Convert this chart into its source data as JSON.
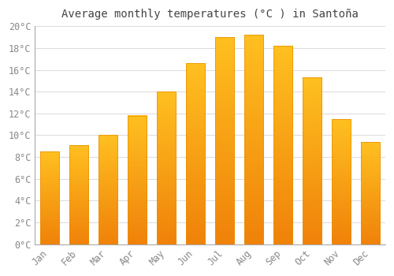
{
  "title": "Average monthly temperatures (°C ) in Santoña",
  "months": [
    "Jan",
    "Feb",
    "Mar",
    "Apr",
    "May",
    "Jun",
    "Jul",
    "Aug",
    "Sep",
    "Oct",
    "Nov",
    "Dec"
  ],
  "values": [
    8.5,
    9.1,
    10.0,
    11.8,
    14.0,
    16.6,
    19.0,
    19.2,
    18.2,
    15.3,
    11.5,
    9.4
  ],
  "bar_color_top": "#FFC020",
  "bar_color_bottom": "#F0820A",
  "ylim": [
    0,
    20
  ],
  "yticks": [
    0,
    2,
    4,
    6,
    8,
    10,
    12,
    14,
    16,
    18,
    20
  ],
  "background_color": "#FFFFFF",
  "grid_color": "#DDDDDD",
  "title_fontsize": 10,
  "tick_fontsize": 8.5,
  "tick_color": "#888888",
  "title_color": "#444444",
  "font_family": "monospace",
  "bar_width": 0.65
}
